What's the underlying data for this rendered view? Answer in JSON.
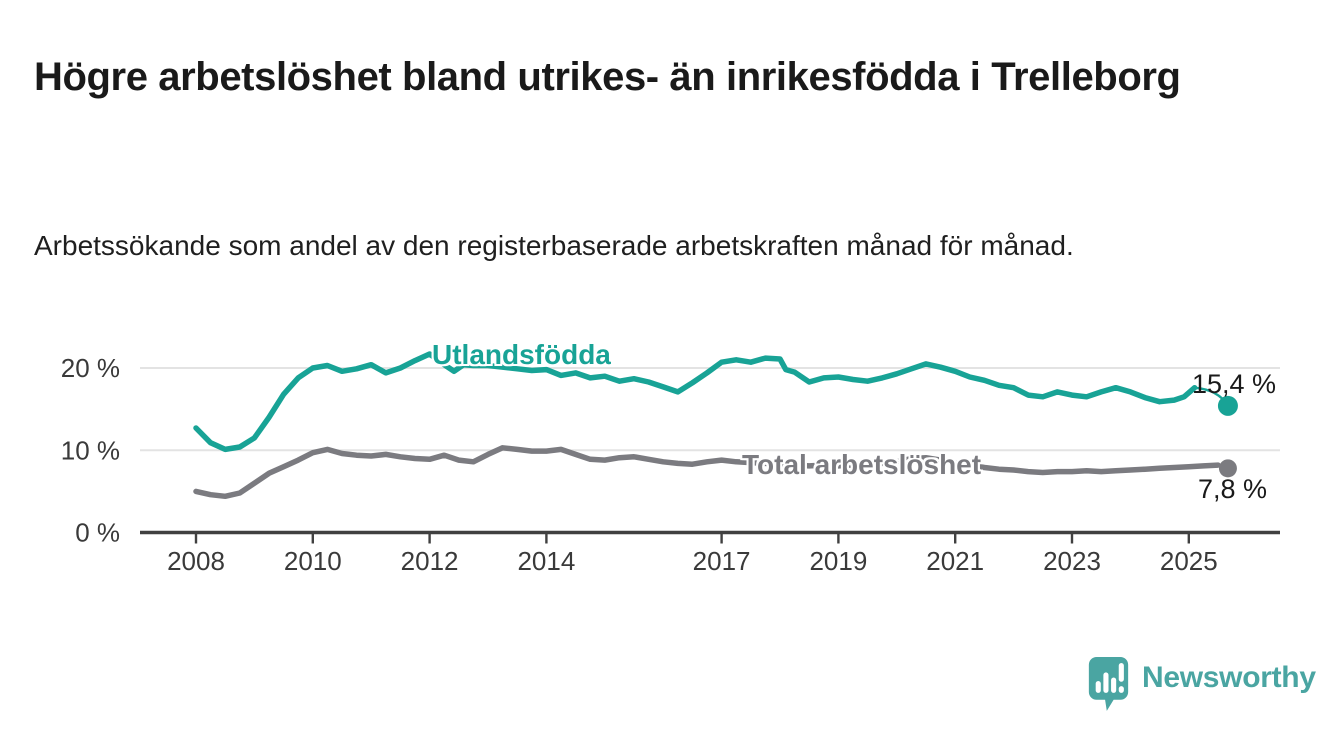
{
  "title": "Högre arbetslöshet bland utrikes- än inrikesfödda i Trelleborg",
  "subtitle": "Arbetssökande som andel av den registerbaserade arbetskraften månad för månad.",
  "chart_data": {
    "type": "line",
    "title": "Högre arbetslöshet bland utrikes- än inrikesfödda i Trelleborg",
    "ylabel": "Arbetssökande som andel av den registerbaserade arbetskraften (%)",
    "grid": "horizontal-gridlines",
    "legend_position": "inline-labels-on-lines",
    "x_axis": {
      "range": [
        2007.1,
        2026.6
      ],
      "ticks": [
        {
          "year": 2008,
          "label": "2008"
        },
        {
          "year": 2010,
          "label": "2010"
        },
        {
          "year": 2012,
          "label": "2012"
        },
        {
          "year": 2014,
          "label": "2014"
        },
        {
          "year": 2017,
          "label": "2017"
        },
        {
          "year": 2019,
          "label": "2019"
        },
        {
          "year": 2021,
          "label": "2021"
        },
        {
          "year": 2023,
          "label": "2023"
        },
        {
          "year": 2025,
          "label": "2025"
        }
      ]
    },
    "y_axis": {
      "range": [
        0,
        25
      ],
      "unit": "%",
      "ticks": [
        {
          "value": 0,
          "label": "0 %"
        },
        {
          "value": 10,
          "label": "10 %"
        },
        {
          "value": 20,
          "label": "20 %"
        }
      ]
    },
    "series": [
      {
        "name": "Utlandsfödda",
        "color": "#18A396",
        "end_value": 15.4,
        "end_label": "15,4 %",
        "x": [
          2008.0,
          2008.25,
          2008.5,
          2008.75,
          2009.0,
          2009.25,
          2009.5,
          2009.75,
          2010.0,
          2010.25,
          2010.5,
          2010.75,
          2011.0,
          2011.25,
          2011.5,
          2011.75,
          2012.0,
          2012.25,
          2012.42,
          2012.58,
          2012.75,
          2013.0,
          2013.25,
          2013.5,
          2013.75,
          2014.0,
          2014.25,
          2014.5,
          2014.75,
          2015.0,
          2015.25,
          2015.5,
          2015.75,
          2016.0,
          2016.25,
          2016.5,
          2016.75,
          2017.0,
          2017.25,
          2017.5,
          2017.75,
          2018.0,
          2018.1,
          2018.25,
          2018.5,
          2018.75,
          2019.0,
          2019.25,
          2019.5,
          2019.75,
          2020.0,
          2020.25,
          2020.5,
          2020.75,
          2021.0,
          2021.25,
          2021.5,
          2021.75,
          2022.0,
          2022.25,
          2022.5,
          2022.75,
          2023.0,
          2023.25,
          2023.5,
          2023.75,
          2024.0,
          2024.25,
          2024.5,
          2024.75,
          2024.92,
          2025.1,
          2025.67
        ],
        "values": [
          12.7,
          10.9,
          10.1,
          10.4,
          11.5,
          14.0,
          16.8,
          18.8,
          20.0,
          20.3,
          19.6,
          19.9,
          20.4,
          19.4,
          20.0,
          20.9,
          21.7,
          20.4,
          19.6,
          20.4,
          20.3,
          20.3,
          20.1,
          19.9,
          19.7,
          19.8,
          19.1,
          19.4,
          18.8,
          19.0,
          18.4,
          18.7,
          18.3,
          17.7,
          17.1,
          18.2,
          19.4,
          20.7,
          21.0,
          20.7,
          21.2,
          21.1,
          19.8,
          19.5,
          18.3,
          18.8,
          18.9,
          18.6,
          18.4,
          18.8,
          19.3,
          19.9,
          20.5,
          20.1,
          19.6,
          18.9,
          18.5,
          17.9,
          17.6,
          16.7,
          16.5,
          17.1,
          16.7,
          16.5,
          17.1,
          17.6,
          17.1,
          16.4,
          15.9,
          16.1,
          16.5,
          17.6,
          15.4
        ]
      },
      {
        "name": "Total arbetslöshet",
        "color": "#7B7B80",
        "end_value": 7.8,
        "end_label": "7,8 %",
        "x": [
          2008.0,
          2008.25,
          2008.5,
          2008.75,
          2009.0,
          2009.25,
          2009.5,
          2009.75,
          2010.0,
          2010.25,
          2010.5,
          2010.75,
          2011.0,
          2011.25,
          2011.5,
          2011.75,
          2012.0,
          2012.25,
          2012.5,
          2012.75,
          2013.0,
          2013.25,
          2013.5,
          2013.75,
          2014.0,
          2014.25,
          2014.5,
          2014.75,
          2015.0,
          2015.25,
          2015.5,
          2015.75,
          2016.0,
          2016.25,
          2016.5,
          2016.75,
          2017.0,
          2017.25,
          2017.5,
          2017.75,
          2018.0,
          2018.25,
          2018.5,
          2018.75,
          2019.0,
          2019.25,
          2019.5,
          2019.75,
          2020.0,
          2020.25,
          2020.5,
          2020.75,
          2021.0,
          2021.25,
          2021.5,
          2021.75,
          2022.0,
          2022.25,
          2022.5,
          2022.75,
          2023.0,
          2023.25,
          2023.5,
          2023.75,
          2024.0,
          2024.25,
          2024.5,
          2024.75,
          2025.0,
          2025.25,
          2025.5,
          2025.67
        ],
        "values": [
          5.0,
          4.6,
          4.4,
          4.8,
          6.0,
          7.2,
          8.0,
          8.8,
          9.7,
          10.1,
          9.6,
          9.4,
          9.3,
          9.5,
          9.2,
          9.0,
          8.9,
          9.4,
          8.8,
          8.6,
          9.5,
          10.3,
          10.1,
          9.9,
          9.9,
          10.1,
          9.5,
          8.9,
          8.8,
          9.1,
          9.2,
          8.9,
          8.6,
          8.4,
          8.3,
          8.6,
          8.8,
          8.6,
          8.5,
          8.4,
          8.3,
          8.2,
          8.1,
          8.2,
          8.1,
          8.2,
          8.3,
          8.4,
          8.6,
          9.0,
          9.1,
          8.8,
          8.5,
          8.2,
          7.9,
          7.7,
          7.6,
          7.4,
          7.3,
          7.4,
          7.4,
          7.5,
          7.4,
          7.5,
          7.6,
          7.7,
          7.8,
          7.9,
          8.0,
          8.1,
          8.2,
          7.8
        ]
      }
    ],
    "colors": {
      "gridline": "#E3E3E3",
      "axis": "#404040",
      "tick_label": "#3A3A3A"
    }
  },
  "branding": {
    "logo_text": "Newsworthy",
    "logo_color": "#4AA5A2"
  }
}
